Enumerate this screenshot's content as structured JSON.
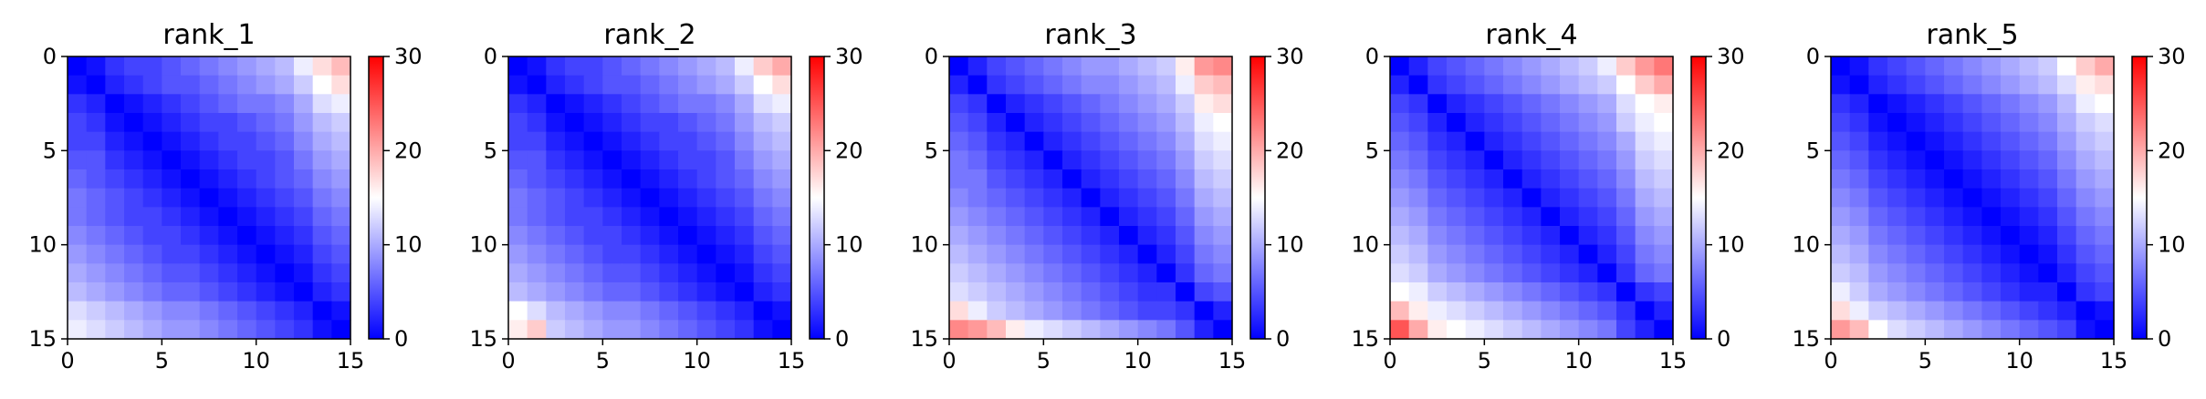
{
  "chart_data": [
    {
      "type": "heatmap",
      "title": "rank_1",
      "rows": [
        [
          0,
          1,
          3,
          4,
          4,
          5,
          6,
          7,
          8,
          9,
          10,
          11,
          14,
          17,
          19
        ],
        [
          1,
          0,
          2,
          3,
          4,
          5,
          5,
          6,
          7,
          8,
          9,
          10,
          12,
          15,
          17
        ],
        [
          3,
          2,
          0,
          1,
          2,
          3,
          4,
          5,
          6,
          7,
          7,
          8,
          10,
          13,
          14
        ],
        [
          4,
          3,
          1,
          0,
          1,
          2,
          3,
          4,
          4,
          5,
          6,
          7,
          9,
          11,
          12
        ],
        [
          4,
          4,
          2,
          1,
          0,
          1,
          2,
          3,
          4,
          4,
          5,
          6,
          8,
          10,
          11
        ],
        [
          5,
          5,
          3,
          2,
          1,
          0,
          1,
          2,
          3,
          4,
          4,
          5,
          7,
          9,
          10
        ],
        [
          6,
          5,
          4,
          3,
          2,
          1,
          0,
          1,
          2,
          3,
          4,
          5,
          6,
          8,
          9
        ],
        [
          7,
          6,
          5,
          4,
          3,
          2,
          1,
          0,
          1,
          2,
          3,
          4,
          5,
          7,
          8
        ],
        [
          7,
          6,
          5,
          4,
          4,
          3,
          2,
          1,
          0,
          1,
          2,
          3,
          4,
          6,
          7
        ],
        [
          8,
          7,
          6,
          5,
          4,
          4,
          3,
          2,
          1,
          0,
          1,
          2,
          3,
          5,
          6
        ],
        [
          9,
          8,
          7,
          6,
          5,
          4,
          4,
          3,
          2,
          1,
          0,
          1,
          2,
          4,
          5
        ],
        [
          10,
          9,
          8,
          7,
          6,
          5,
          5,
          4,
          3,
          2,
          1,
          0,
          1,
          3,
          4
        ],
        [
          11,
          10,
          9,
          8,
          7,
          6,
          6,
          5,
          4,
          3,
          2,
          1,
          0,
          2,
          3
        ],
        [
          13,
          12,
          11,
          10,
          9,
          8,
          8,
          7,
          6,
          5,
          4,
          3,
          2,
          0,
          1
        ],
        [
          14,
          13,
          12,
          11,
          10,
          9,
          9,
          8,
          7,
          6,
          5,
          4,
          3,
          1,
          0
        ]
      ],
      "x_ticks": [
        0,
        5,
        10,
        15
      ],
      "y_ticks": [
        0,
        5,
        10,
        15
      ],
      "colorbar_ticks": [
        0,
        10,
        20,
        30
      ],
      "vmin": 0,
      "vmax": 30,
      "colormap": "bwr"
    },
    {
      "type": "heatmap",
      "title": "rank_2",
      "rows": [
        [
          0,
          1,
          3,
          4,
          4,
          5,
          6,
          7,
          8,
          9,
          10,
          11,
          14,
          18,
          20
        ],
        [
          1,
          0,
          2,
          3,
          4,
          5,
          5,
          6,
          7,
          8,
          9,
          10,
          12,
          15,
          17
        ],
        [
          3,
          2,
          0,
          1,
          2,
          3,
          4,
          5,
          6,
          7,
          7,
          8,
          10,
          13,
          14
        ],
        [
          4,
          3,
          1,
          0,
          1,
          2,
          3,
          4,
          4,
          5,
          6,
          7,
          9,
          11,
          12
        ],
        [
          4,
          4,
          2,
          1,
          0,
          1,
          2,
          3,
          4,
          4,
          5,
          6,
          8,
          10,
          11
        ],
        [
          5,
          5,
          3,
          2,
          1,
          0,
          1,
          2,
          3,
          4,
          4,
          5,
          7,
          9,
          10
        ],
        [
          6,
          5,
          4,
          3,
          2,
          1,
          0,
          1,
          2,
          3,
          4,
          5,
          6,
          8,
          9
        ],
        [
          7,
          6,
          5,
          4,
          3,
          2,
          1,
          0,
          1,
          2,
          3,
          4,
          5,
          7,
          8
        ],
        [
          7,
          6,
          5,
          4,
          4,
          3,
          2,
          1,
          0,
          1,
          2,
          3,
          4,
          6,
          7
        ],
        [
          8,
          7,
          6,
          5,
          4,
          4,
          3,
          2,
          1,
          0,
          1,
          2,
          3,
          5,
          6
        ],
        [
          9,
          8,
          7,
          6,
          5,
          4,
          4,
          3,
          2,
          1,
          0,
          1,
          2,
          4,
          5
        ],
        [
          10,
          9,
          8,
          7,
          6,
          5,
          5,
          4,
          3,
          2,
          1,
          0,
          1,
          3,
          4
        ],
        [
          11,
          10,
          9,
          8,
          7,
          6,
          6,
          5,
          4,
          3,
          2,
          1,
          0,
          2,
          3
        ],
        [
          15,
          13,
          11,
          10,
          9,
          8,
          8,
          7,
          6,
          5,
          4,
          3,
          2,
          0,
          1
        ],
        [
          16,
          18,
          12,
          11,
          10,
          9,
          9,
          8,
          7,
          6,
          5,
          4,
          3,
          1,
          0
        ]
      ],
      "x_ticks": [
        0,
        5,
        10,
        15
      ],
      "y_ticks": [
        0,
        5,
        10,
        15
      ],
      "colorbar_ticks": [
        0,
        10,
        20,
        30
      ],
      "vmin": 0,
      "vmax": 30,
      "colormap": "bwr"
    },
    {
      "type": "heatmap",
      "title": "rank_3",
      "rows": [
        [
          0,
          2,
          4,
          5,
          6,
          7,
          8,
          9,
          9,
          10,
          11,
          12,
          16,
          21,
          22
        ],
        [
          2,
          0,
          3,
          4,
          5,
          6,
          7,
          8,
          8,
          9,
          10,
          11,
          14,
          18,
          19
        ],
        [
          4,
          3,
          0,
          2,
          3,
          4,
          5,
          6,
          7,
          8,
          9,
          10,
          12,
          16,
          17
        ],
        [
          5,
          4,
          2,
          0,
          2,
          3,
          4,
          5,
          6,
          7,
          8,
          9,
          11,
          14,
          15
        ],
        [
          6,
          5,
          3,
          2,
          0,
          2,
          3,
          4,
          5,
          6,
          7,
          8,
          10,
          13,
          14
        ],
        [
          7,
          6,
          4,
          3,
          2,
          0,
          2,
          3,
          4,
          5,
          6,
          7,
          9,
          12,
          13
        ],
        [
          7,
          7,
          5,
          4,
          3,
          2,
          0,
          2,
          3,
          4,
          5,
          6,
          8,
          11,
          12
        ],
        [
          8,
          7,
          6,
          5,
          4,
          3,
          2,
          0,
          2,
          3,
          4,
          5,
          7,
          10,
          11
        ],
        [
          9,
          8,
          7,
          6,
          5,
          4,
          3,
          2,
          0,
          2,
          3,
          4,
          6,
          9,
          10
        ],
        [
          10,
          9,
          8,
          7,
          6,
          5,
          4,
          3,
          2,
          0,
          2,
          3,
          5,
          8,
          9
        ],
        [
          11,
          10,
          9,
          8,
          7,
          6,
          5,
          4,
          3,
          2,
          0,
          2,
          4,
          7,
          8
        ],
        [
          12,
          11,
          10,
          9,
          8,
          7,
          6,
          5,
          4,
          3,
          2,
          0,
          3,
          6,
          7
        ],
        [
          13,
          12,
          11,
          10,
          9,
          8,
          7,
          6,
          5,
          4,
          3,
          3,
          0,
          4,
          5
        ],
        [
          17,
          14,
          12,
          11,
          10,
          9,
          8,
          7,
          6,
          5,
          4,
          4,
          3,
          0,
          2
        ],
        [
          22,
          21,
          19,
          16,
          14,
          13,
          12,
          11,
          10,
          9,
          8,
          7,
          5,
          2,
          0
        ]
      ],
      "x_ticks": [
        0,
        5,
        10,
        15
      ],
      "y_ticks": [
        0,
        5,
        10,
        15
      ],
      "colorbar_ticks": [
        0,
        10,
        20,
        30
      ],
      "vmin": 0,
      "vmax": 30,
      "colormap": "bwr"
    },
    {
      "type": "heatmap",
      "title": "rank_4",
      "rows": [
        [
          0,
          2,
          4,
          5,
          6,
          7,
          8,
          9,
          10,
          11,
          12,
          14,
          18,
          21,
          23
        ],
        [
          2,
          0,
          3,
          4,
          5,
          6,
          7,
          8,
          9,
          10,
          11,
          12,
          15,
          18,
          20
        ],
        [
          4,
          3,
          0,
          2,
          3,
          4,
          5,
          6,
          7,
          8,
          9,
          10,
          13,
          15,
          16
        ],
        [
          5,
          4,
          2,
          0,
          2,
          3,
          4,
          5,
          6,
          7,
          8,
          9,
          12,
          14,
          15
        ],
        [
          6,
          5,
          3,
          2,
          0,
          2,
          3,
          4,
          5,
          6,
          7,
          8,
          10,
          13,
          14
        ],
        [
          7,
          6,
          4,
          3,
          2,
          0,
          2,
          3,
          4,
          5,
          6,
          7,
          9,
          12,
          13
        ],
        [
          8,
          7,
          5,
          4,
          3,
          2,
          0,
          2,
          3,
          4,
          5,
          6,
          8,
          11,
          12
        ],
        [
          9,
          8,
          6,
          5,
          4,
          3,
          2,
          0,
          2,
          3,
          4,
          5,
          7,
          10,
          11
        ],
        [
          10,
          9,
          7,
          6,
          5,
          4,
          3,
          2,
          0,
          2,
          3,
          4,
          6,
          9,
          10
        ],
        [
          11,
          10,
          8,
          7,
          6,
          5,
          4,
          3,
          2,
          0,
          2,
          3,
          5,
          8,
          9
        ],
        [
          12,
          11,
          9,
          8,
          7,
          6,
          5,
          4,
          3,
          2,
          0,
          2,
          4,
          7,
          8
        ],
        [
          13,
          12,
          10,
          9,
          8,
          7,
          6,
          5,
          4,
          3,
          2,
          0,
          3,
          6,
          7
        ],
        [
          15,
          14,
          12,
          11,
          10,
          9,
          8,
          7,
          6,
          5,
          4,
          3,
          0,
          3,
          4
        ],
        [
          19,
          16,
          14,
          13,
          12,
          11,
          10,
          9,
          8,
          7,
          6,
          5,
          3,
          0,
          2
        ],
        [
          25,
          20,
          16,
          15,
          14,
          13,
          12,
          11,
          10,
          9,
          8,
          7,
          4,
          2,
          0
        ]
      ],
      "x_ticks": [
        0,
        5,
        10,
        15
      ],
      "y_ticks": [
        0,
        5,
        10,
        15
      ],
      "colorbar_ticks": [
        0,
        10,
        20,
        30
      ],
      "vmin": 0,
      "vmax": 30,
      "colormap": "bwr"
    },
    {
      "type": "heatmap",
      "title": "rank_5",
      "rows": [
        [
          0,
          1,
          3,
          4,
          5,
          6,
          7,
          8,
          9,
          10,
          11,
          12,
          15,
          18,
          20
        ],
        [
          1,
          0,
          2,
          3,
          4,
          5,
          6,
          7,
          8,
          9,
          10,
          11,
          13,
          16,
          17
        ],
        [
          3,
          2,
          0,
          1,
          2,
          3,
          4,
          5,
          6,
          7,
          8,
          9,
          11,
          14,
          15
        ],
        [
          4,
          3,
          1,
          0,
          1,
          2,
          3,
          4,
          5,
          6,
          7,
          8,
          10,
          12,
          13
        ],
        [
          5,
          4,
          2,
          1,
          0,
          1,
          2,
          3,
          4,
          5,
          6,
          7,
          9,
          11,
          12
        ],
        [
          6,
          5,
          3,
          2,
          1,
          0,
          1,
          2,
          3,
          4,
          5,
          6,
          8,
          10,
          11
        ],
        [
          7,
          6,
          4,
          3,
          2,
          1,
          0,
          1,
          2,
          3,
          4,
          5,
          7,
          9,
          10
        ],
        [
          8,
          7,
          5,
          4,
          3,
          2,
          1,
          0,
          1,
          2,
          3,
          4,
          6,
          8,
          9
        ],
        [
          9,
          8,
          6,
          5,
          4,
          3,
          2,
          1,
          0,
          1,
          2,
          3,
          5,
          7,
          8
        ],
        [
          10,
          9,
          7,
          6,
          5,
          4,
          3,
          2,
          1,
          0,
          1,
          2,
          4,
          6,
          7
        ],
        [
          11,
          10,
          8,
          7,
          6,
          5,
          4,
          3,
          2,
          1,
          0,
          1,
          3,
          5,
          6
        ],
        [
          12,
          11,
          9,
          8,
          7,
          6,
          5,
          4,
          3,
          2,
          1,
          0,
          2,
          4,
          5
        ],
        [
          14,
          12,
          10,
          9,
          8,
          7,
          6,
          5,
          4,
          3,
          2,
          2,
          0,
          3,
          4
        ],
        [
          17,
          14,
          12,
          11,
          10,
          9,
          8,
          7,
          6,
          5,
          4,
          3,
          2,
          0,
          1
        ],
        [
          21,
          19,
          15,
          13,
          12,
          11,
          10,
          9,
          8,
          7,
          6,
          5,
          4,
          1,
          0
        ]
      ],
      "x_ticks": [
        0,
        5,
        10,
        15
      ],
      "y_ticks": [
        0,
        5,
        10,
        15
      ],
      "colorbar_ticks": [
        0,
        10,
        20,
        30
      ],
      "vmin": 0,
      "vmax": 30,
      "colormap": "bwr"
    }
  ]
}
